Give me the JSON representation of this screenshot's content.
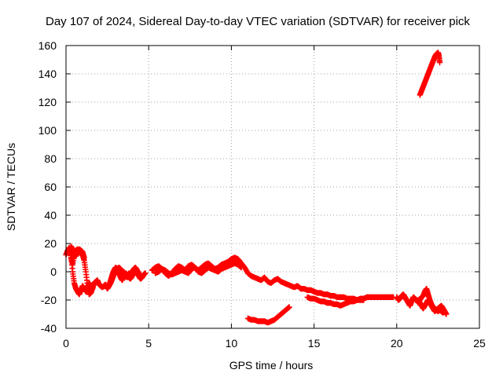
{
  "chart_data": {
    "type": "scatter",
    "title": "Day 107 of 2024, Sidereal Day-to-day VTEC variation (SDTVAR) for receiver pick",
    "xlabel": "GPS time / hours",
    "ylabel": "SDTVAR / TECUs",
    "xlim": [
      0,
      25
    ],
    "ylim": [
      -40,
      160
    ],
    "xticks": [
      0,
      5,
      10,
      15,
      20,
      25
    ],
    "yticks": [
      -40,
      -20,
      0,
      20,
      40,
      60,
      80,
      100,
      120,
      140,
      160
    ],
    "grid": true,
    "marker": "plus",
    "series": [
      {
        "name": "SDTVAR",
        "color": "#ff0000",
        "segments": [
          {
            "x": [
              0.0,
              0.1,
              0.2,
              0.3,
              0.4,
              0.5,
              0.6,
              0.7,
              0.8,
              0.9,
              1.0,
              1.1,
              1.2,
              1.3,
              1.4,
              1.5,
              1.6,
              1.7,
              1.8,
              1.9,
              2.0,
              2.1,
              2.2,
              2.3,
              2.4,
              2.5,
              2.6,
              2.7,
              2.8,
              2.9,
              3.0,
              3.1,
              3.2,
              3.3,
              3.4,
              3.5,
              3.6,
              3.7,
              3.8,
              3.9,
              4.0,
              4.1,
              4.2,
              4.3,
              4.4,
              4.5,
              4.6,
              4.7,
              4.8
            ],
            "y": [
              12,
              15,
              17,
              10,
              5,
              12,
              15,
              16,
              14,
              13,
              12,
              8,
              0,
              -10,
              -16,
              -15,
              -12,
              -8,
              -7,
              -6,
              -9,
              -10,
              -11,
              -10,
              -9,
              -12,
              -10,
              -8,
              -5,
              -2,
              1,
              2,
              3,
              2,
              -2,
              0,
              -3,
              -4,
              -1,
              -2,
              0,
              2,
              3,
              1,
              -1,
              -3,
              -4,
              -2,
              -1
            ]
          },
          {
            "x": [
              0.2,
              0.3,
              0.4,
              0.5,
              0.6,
              0.7,
              0.8,
              0.9,
              1.0,
              1.1,
              1.2,
              1.3,
              1.4,
              1.5,
              1.6
            ],
            "y": [
              17,
              12,
              0,
              -8,
              -12,
              -14,
              -16,
              -13,
              -10,
              -12,
              -14,
              -11,
              -8,
              -10,
              -12
            ]
          },
          {
            "x": [
              0.3,
              0.4,
              0.5,
              0.6,
              0.7,
              0.8,
              0.9,
              1.0,
              1.1
            ],
            "y": [
              18,
              16,
              13,
              11,
              14,
              16,
              15,
              14,
              10
            ]
          },
          {
            "x": [
              2.6,
              2.7,
              2.8,
              2.9,
              3.0,
              3.1,
              3.2,
              3.3,
              3.4,
              3.5,
              3.6,
              3.7,
              3.8,
              3.9,
              4.0,
              4.1,
              4.2,
              4.3,
              4.4,
              4.5,
              4.6,
              4.7
            ],
            "y": [
              -10,
              -6,
              -2,
              1,
              3,
              2,
              -1,
              -4,
              -6,
              -3,
              -1,
              -2,
              -4,
              -5,
              -3,
              -1,
              1,
              -1,
              -3,
              -5,
              -4,
              -2
            ]
          },
          {
            "x": [
              5.2,
              5.4,
              5.6,
              5.8,
              6.0,
              6.2,
              6.4,
              6.6,
              6.8,
              7.0,
              7.2,
              7.4,
              7.6,
              7.8,
              8.0,
              8.2,
              8.4,
              8.6,
              8.8,
              9.0,
              9.2,
              9.4,
              9.6,
              9.8,
              10.0,
              10.2,
              10.4,
              10.6,
              10.8,
              11.0,
              11.2,
              11.4,
              11.6,
              11.8,
              12.0,
              12.2,
              12.4,
              12.6,
              12.8,
              13.0,
              13.2,
              13.4,
              13.6,
              13.8,
              14.0,
              14.2,
              14.4,
              14.6,
              14.8,
              15.0,
              15.2,
              15.4,
              15.6,
              15.8,
              16.0,
              16.2,
              16.4,
              16.6,
              16.8,
              17.0,
              17.2,
              17.4,
              17.6,
              17.8,
              18.0,
              18.2,
              18.4,
              18.6,
              18.8,
              19.0,
              19.2,
              19.4,
              19.6,
              19.8
            ],
            "y": [
              1,
              3,
              4,
              2,
              -1,
              -3,
              -1,
              2,
              4,
              3,
              1,
              4,
              5,
              3,
              1,
              3,
              5,
              6,
              4,
              2,
              3,
              5,
              6,
              7,
              9,
              10,
              9,
              6,
              3,
              -1,
              -3,
              -4,
              -5,
              -6,
              -4,
              -7,
              -8,
              -6,
              -5,
              -7,
              -8,
              -9,
              -10,
              -11,
              -10,
              -12,
              -12,
              -13,
              -13,
              -14,
              -15,
              -15,
              -16,
              -16,
              -17,
              -17,
              -18,
              -18,
              -18,
              -19,
              -19,
              -19,
              -20,
              -19,
              -19,
              -18,
              -18,
              -18,
              -18,
              -18,
              -18,
              -18,
              -18,
              -18
            ]
          },
          {
            "x": [
              5.4,
              5.6,
              5.8,
              6.0,
              6.2,
              6.4,
              6.6,
              6.8,
              7.0,
              7.2,
              7.4,
              7.6,
              7.8,
              8.0,
              8.2,
              8.4,
              8.6,
              8.8,
              9.0,
              9.2,
              9.4,
              9.6,
              9.8,
              10.0,
              10.2,
              10.4,
              10.6
            ],
            "y": [
              -1,
              0,
              2,
              1,
              -1,
              -2,
              -1,
              0,
              1,
              0,
              -1,
              2,
              3,
              0,
              -1,
              1,
              3,
              2,
              1,
              0,
              2,
              3,
              4,
              5,
              6,
              5,
              3
            ]
          },
          {
            "x": [
              11.0,
              11.2,
              11.4,
              11.6,
              11.8,
              12.0,
              12.2,
              12.4,
              12.6,
              12.8,
              13.0,
              13.2,
              13.4,
              13.5
            ],
            "y": [
              -33,
              -34,
              -34,
              -35,
              -35,
              -35,
              -36,
              -35,
              -34,
              -32,
              -30,
              -28,
              -26,
              -25
            ]
          },
          {
            "x": [
              14.6,
              14.8,
              15.0,
              15.2,
              15.4,
              15.6,
              15.8,
              16.0,
              16.2,
              16.4,
              16.6,
              16.8,
              17.0,
              17.2,
              17.4,
              17.6,
              17.8,
              18.0
            ],
            "y": [
              -18,
              -19,
              -19,
              -20,
              -21,
              -21,
              -22,
              -22,
              -23,
              -23,
              -24,
              -23,
              -22,
              -21,
              -21,
              -20,
              -20,
              -20
            ]
          },
          {
            "x": [
              20.0,
              20.1,
              20.2,
              20.3,
              20.4,
              20.5,
              20.6,
              20.7,
              20.8,
              20.9,
              21.0,
              21.1,
              21.2,
              21.3,
              21.4,
              21.5,
              21.6,
              21.7,
              21.8,
              21.9,
              22.0,
              22.1,
              22.2,
              22.3,
              22.4,
              22.5,
              22.6,
              22.7,
              22.8,
              22.9,
              23.0
            ],
            "y": [
              -18,
              -20,
              -19,
              -17,
              -16,
              -18,
              -20,
              -22,
              -24,
              -21,
              -18,
              -19,
              -20,
              -22,
              -20,
              -18,
              -17,
              -14,
              -12,
              -16,
              -20,
              -23,
              -25,
              -26,
              -27,
              -28,
              -27,
              -28,
              -29,
              -28,
              -30
            ]
          },
          {
            "x": [
              21.3,
              21.4,
              21.5,
              21.6,
              21.7,
              21.8,
              21.9,
              22.0,
              22.1,
              22.2,
              22.3,
              22.4,
              22.5,
              22.6,
              22.7,
              22.8,
              22.9
            ],
            "y": [
              -20,
              -22,
              -24,
              -26,
              -24,
              -22,
              -20,
              -22,
              -24,
              -26,
              -28,
              -27,
              -26,
              -25,
              -24,
              -26,
              -28
            ]
          },
          {
            "x": [
              21.4,
              21.5,
              21.6,
              21.7,
              21.8,
              21.9,
              22.0,
              22.1,
              22.2,
              22.3,
              22.4,
              22.5,
              22.55,
              22.6
            ],
            "y": [
              125,
              128,
              131,
              134,
              137,
              140,
              143,
              146,
              149,
              152,
              154,
              155,
              153,
              148
            ]
          }
        ]
      }
    ]
  }
}
